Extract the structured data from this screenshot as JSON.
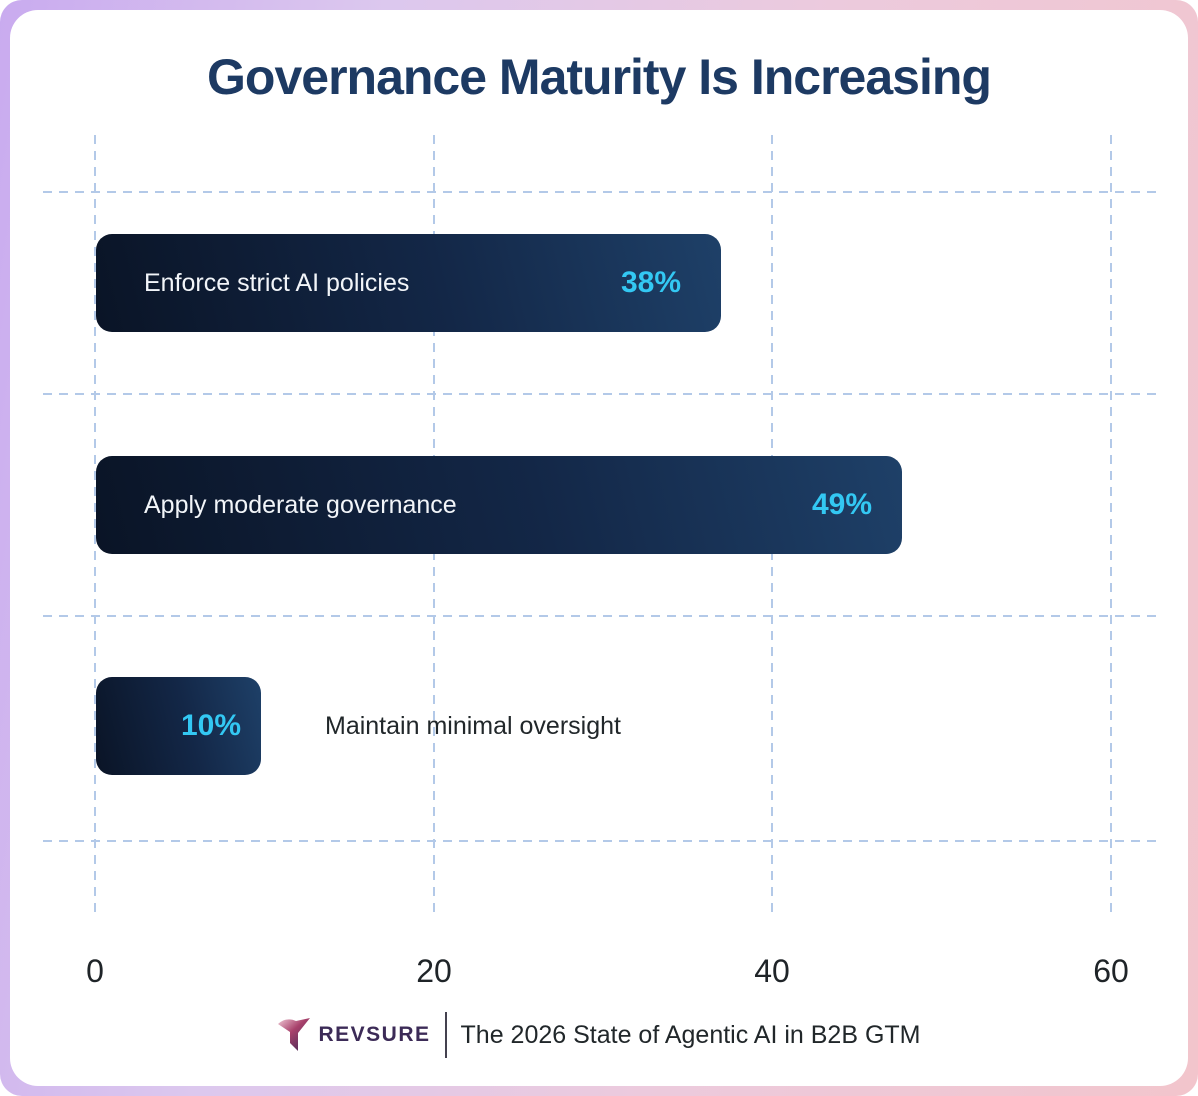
{
  "title": "Governance Maturity Is Increasing",
  "chart_data": {
    "type": "bar",
    "orientation": "horizontal",
    "title": "Governance Maturity Is Increasing",
    "categories": [
      "Enforce strict AI policies",
      "Apply moderate governance",
      "Maintain minimal oversight"
    ],
    "values": [
      38,
      49,
      10
    ],
    "value_labels": [
      "38%",
      "49%",
      "10%"
    ],
    "category_label_placement": [
      "inside",
      "inside",
      "outside"
    ],
    "xlim": [
      0,
      60
    ],
    "x_ticks": [
      "0",
      "20",
      "40",
      "60"
    ],
    "grid": "dashed",
    "legend": "none"
  },
  "footer": {
    "brand": "REVSURE",
    "caption": "The 2026 State of Agentic AI in B2B GTM"
  },
  "colors": {
    "title_navy": "#1d3a63",
    "bar_dark": "#0a1426",
    "bar_light": "#1e4068",
    "accent_cyan": "#33c8f3",
    "bar_label_white": "#f2f5f9",
    "outside_text": "#21272a",
    "grid_blue": "#b3c9e8",
    "frame_purple": "#c9abef",
    "frame_pink": "#f2c5cc",
    "brand_purple": "#3c2b57"
  }
}
